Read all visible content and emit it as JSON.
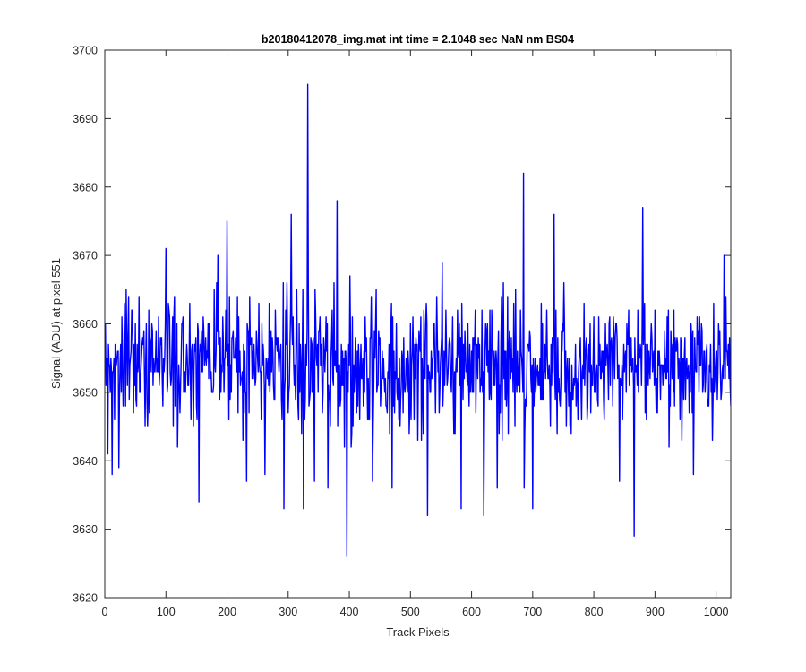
{
  "chart_data": {
    "type": "line",
    "title": "b20180412078_img.mat int time = 2.1048 sec  NaN nm BS04",
    "xlabel": "Track Pixels",
    "ylabel": "Signal (ADU) at pixel 551",
    "xlim": [
      0,
      1024
    ],
    "ylim": [
      3620,
      3700
    ],
    "xticks": [
      0,
      100,
      200,
      300,
      400,
      500,
      600,
      700,
      800,
      900,
      1000
    ],
    "yticks": [
      3620,
      3630,
      3640,
      3650,
      3660,
      3670,
      3680,
      3690,
      3700
    ],
    "grid": false,
    "series": [
      {
        "color": "#0000ff",
        "n_points": 1024,
        "baseline": 3655,
        "typical_range": [
          3640,
          3668
        ],
        "x": [
          1,
          5,
          12,
          23,
          45,
          100,
          154,
          185,
          200,
          232,
          262,
          293,
          305,
          325,
          332,
          343,
          365,
          380,
          396,
          438,
          470,
          528,
          552,
          583,
          620,
          642,
          685,
          686,
          700,
          735,
          842,
          866,
          880,
          963,
          1013
        ],
        "values": [
          3660,
          3641,
          3638,
          3639,
          3662,
          3671,
          3634,
          3670,
          3675,
          3637,
          3638,
          3633,
          3676,
          3633,
          3695,
          3637,
          3636,
          3678,
          3626,
          3637,
          3636,
          3632,
          3669,
          3633,
          3632,
          3636,
          3682,
          3636,
          3633,
          3676,
          3637,
          3629,
          3677,
          3638,
          3670
        ]
      }
    ]
  }
}
